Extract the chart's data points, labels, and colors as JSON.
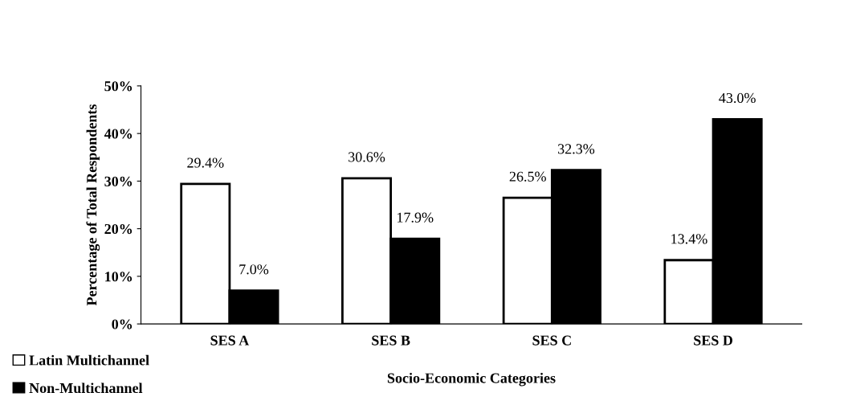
{
  "chart_data": {
    "type": "bar",
    "xlabel": "Socio-Economic Categories",
    "ylabel": "Percentage of Total Respondents",
    "categories": [
      "SES A",
      "SES B",
      "SES C",
      "SES D"
    ],
    "series": [
      {
        "name": "Latin Multichannel",
        "color": "#ffffff",
        "values": [
          29.4,
          30.6,
          26.5,
          13.4
        ],
        "value_labels": [
          "29.4%",
          "30.6%",
          "26.5%",
          "13.4%"
        ]
      },
      {
        "name": "Non-Multichannel",
        "color": "#000000",
        "values": [
          7.0,
          17.9,
          32.3,
          43.0
        ],
        "value_labels": [
          "7.0%",
          "17.9%",
          "32.3%",
          "43.0%"
        ]
      }
    ],
    "ylim": [
      0,
      50
    ],
    "yticks": [
      {
        "value": 0,
        "label": "0%"
      },
      {
        "value": 10,
        "label": "10%"
      },
      {
        "value": 20,
        "label": "20%"
      },
      {
        "value": 30,
        "label": "30%"
      },
      {
        "value": 40,
        "label": "40%"
      },
      {
        "value": 50,
        "label": "50%"
      }
    ],
    "grid": false,
    "legend": "bottom left"
  }
}
